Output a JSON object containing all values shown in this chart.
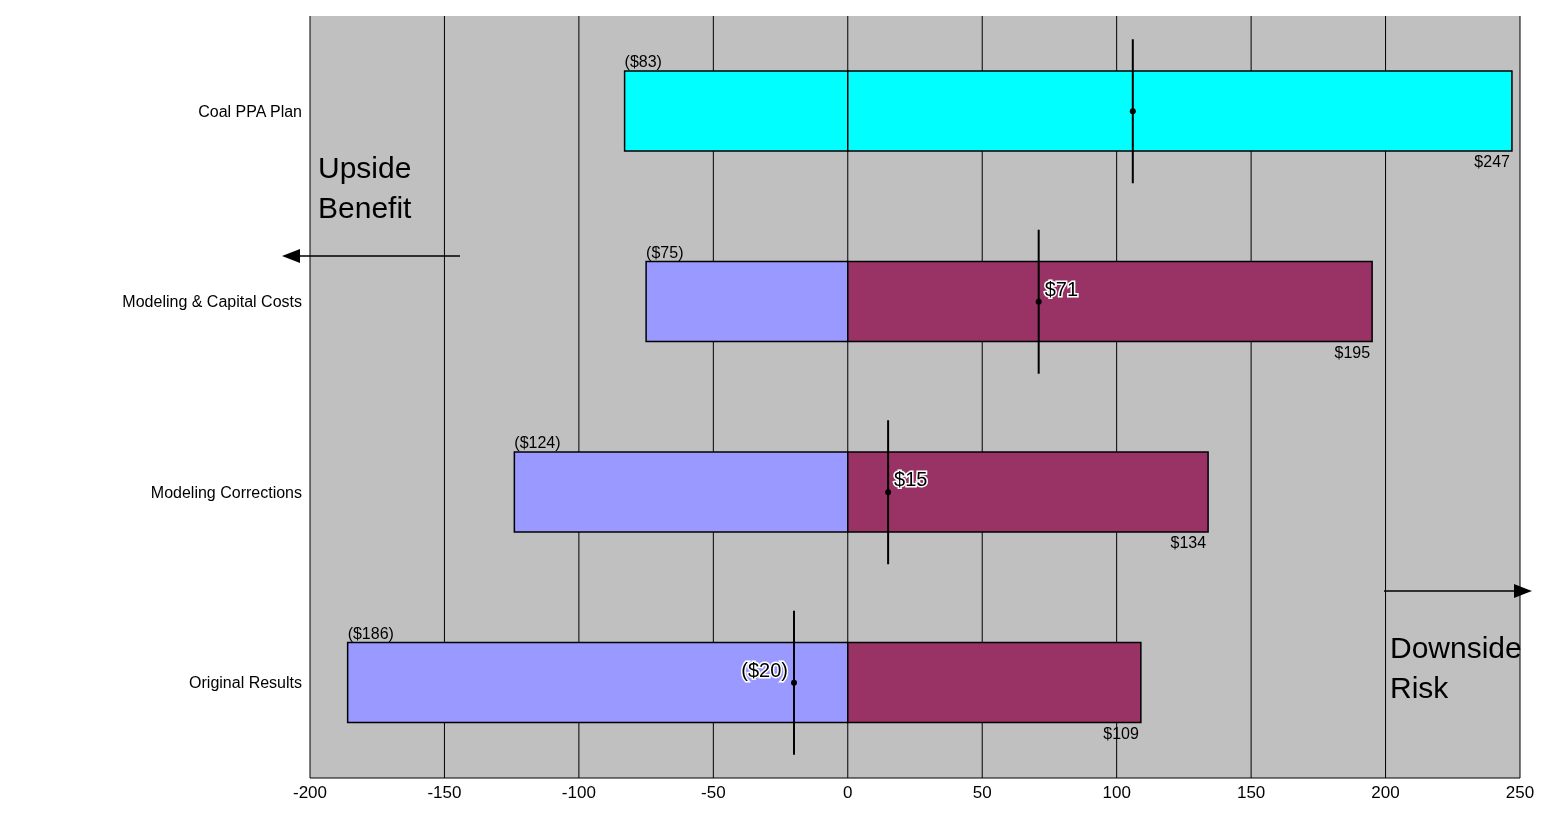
{
  "chart_data": {
    "type": "bar",
    "orientation": "horizontal",
    "stacked": true,
    "categories": [
      "Coal PPA Plan",
      "Modeling & Capital Costs",
      "Modeling Corrections",
      "Original Results"
    ],
    "series": [
      {
        "type": "bar",
        "colors": [
          "#00ffff",
          "#9999ff",
          "#9999ff",
          "#9999ff"
        ],
        "values": [
          -83,
          -75,
          -124,
          -186
        ],
        "value_labels": [
          "($83)",
          "($75)",
          "($124)",
          "($186)"
        ]
      },
      {
        "type": "bar",
        "colors": [
          "#00ffff",
          "#993366",
          "#993366",
          "#993366"
        ],
        "values": [
          247,
          195,
          134,
          109
        ],
        "value_labels": [
          "$247",
          "$195",
          "$134",
          "$109"
        ]
      },
      {
        "type": "scatter",
        "color": "#000000",
        "values": [
          106,
          71,
          15,
          -20
        ],
        "value_labels": [
          null,
          "$71",
          "$15",
          "($20)"
        ]
      }
    ],
    "xlim": [
      -200,
      250
    ],
    "xticks": [
      -200,
      -150,
      -100,
      -50,
      0,
      50,
      100,
      150,
      200,
      250
    ],
    "grid": "x",
    "legend": false,
    "annotations": [
      "Upside Benefit",
      "Downside Risk"
    ]
  }
}
